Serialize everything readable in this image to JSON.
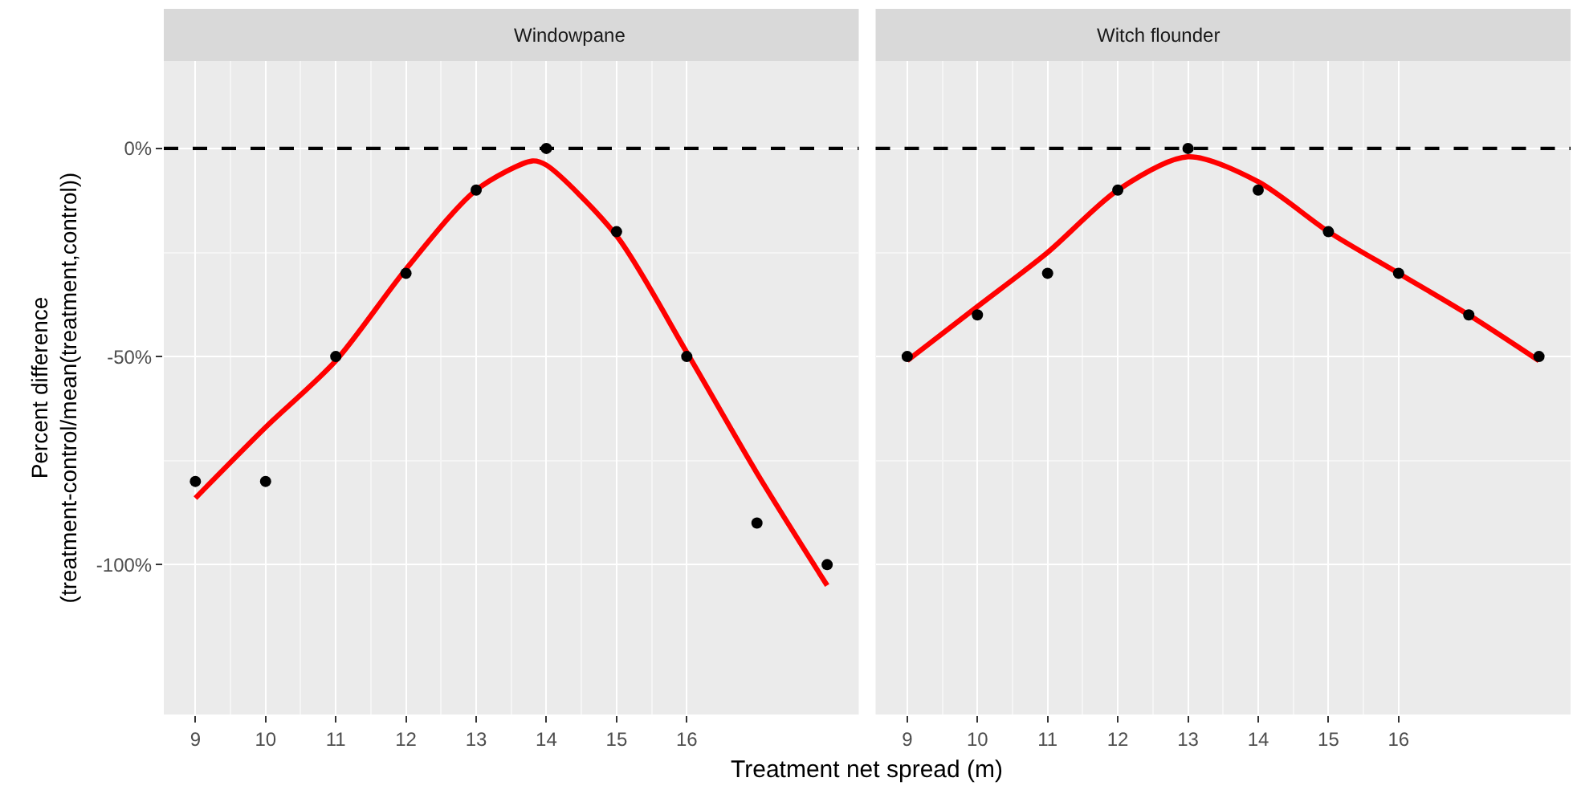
{
  "chart_data": [
    {
      "type": "scatter",
      "title": "Windowpane",
      "xlabel": "Treatment net spread (m)",
      "ylabel": "Percent difference\n(treatment-control/mean(treatment,control))",
      "xlim": [
        8.55,
        18.45
      ],
      "xticks": [
        9,
        10,
        11,
        12,
        13,
        14,
        15,
        16
      ],
      "ylim": [
        -136,
        21
      ],
      "yticks": [
        {
          "value": -100,
          "label": "-100%"
        },
        {
          "value": -50,
          "label": "-50%"
        },
        {
          "value": 0,
          "label": "0%"
        }
      ],
      "grid": true,
      "legend": false,
      "ref_lines": [
        {
          "axis": "y",
          "value": 0,
          "color": "#000000",
          "line_style": "dashed"
        }
      ],
      "series": [
        {
          "color": "#000000",
          "marker": "circle",
          "x": [
            9,
            10,
            11,
            12,
            13,
            14,
            15,
            16,
            17,
            18
          ],
          "values": [
            -80,
            -80,
            -50,
            -30,
            -10,
            0,
            -20,
            -50,
            -90,
            -100
          ]
        },
        {
          "type": "line",
          "marker": "none",
          "color": "#ff0000",
          "x": [
            9,
            10,
            11,
            12,
            13,
            13.8,
            14,
            15,
            16,
            17,
            18
          ],
          "values": [
            -84,
            -67,
            -51,
            -29,
            -10,
            -3,
            -4,
            -21,
            -49,
            -78,
            -105
          ]
        }
      ]
    },
    {
      "type": "scatter",
      "title": "Witch flounder",
      "xlim": [
        8.55,
        18.45
      ],
      "xticks": [
        9,
        10,
        11,
        12,
        13,
        14,
        15,
        16
      ],
      "ylim": [
        -136,
        21
      ],
      "yticks": [
        -100,
        -50,
        0
      ],
      "tick_labels": "x",
      "grid": true,
      "legend": false,
      "ref_lines": [
        {
          "axis": "y",
          "value": 0,
          "color": "#000000",
          "line_style": "dashed"
        }
      ],
      "series": [
        {
          "color": "#000000",
          "marker": "circle",
          "x": [
            9,
            10,
            11,
            12,
            13,
            14,
            15,
            16,
            17,
            18
          ],
          "values": [
            -50,
            -40,
            -30,
            -10,
            0,
            -10,
            -20,
            -30,
            -40,
            -50
          ]
        },
        {
          "type": "line",
          "marker": "none",
          "color": "#ff0000",
          "x": [
            9,
            10,
            11,
            12,
            13,
            14,
            15,
            16,
            17,
            18
          ],
          "values": [
            -51,
            -38,
            -25,
            -10,
            -2,
            -8,
            -20,
            -30,
            -40,
            -51
          ]
        }
      ]
    }
  ]
}
